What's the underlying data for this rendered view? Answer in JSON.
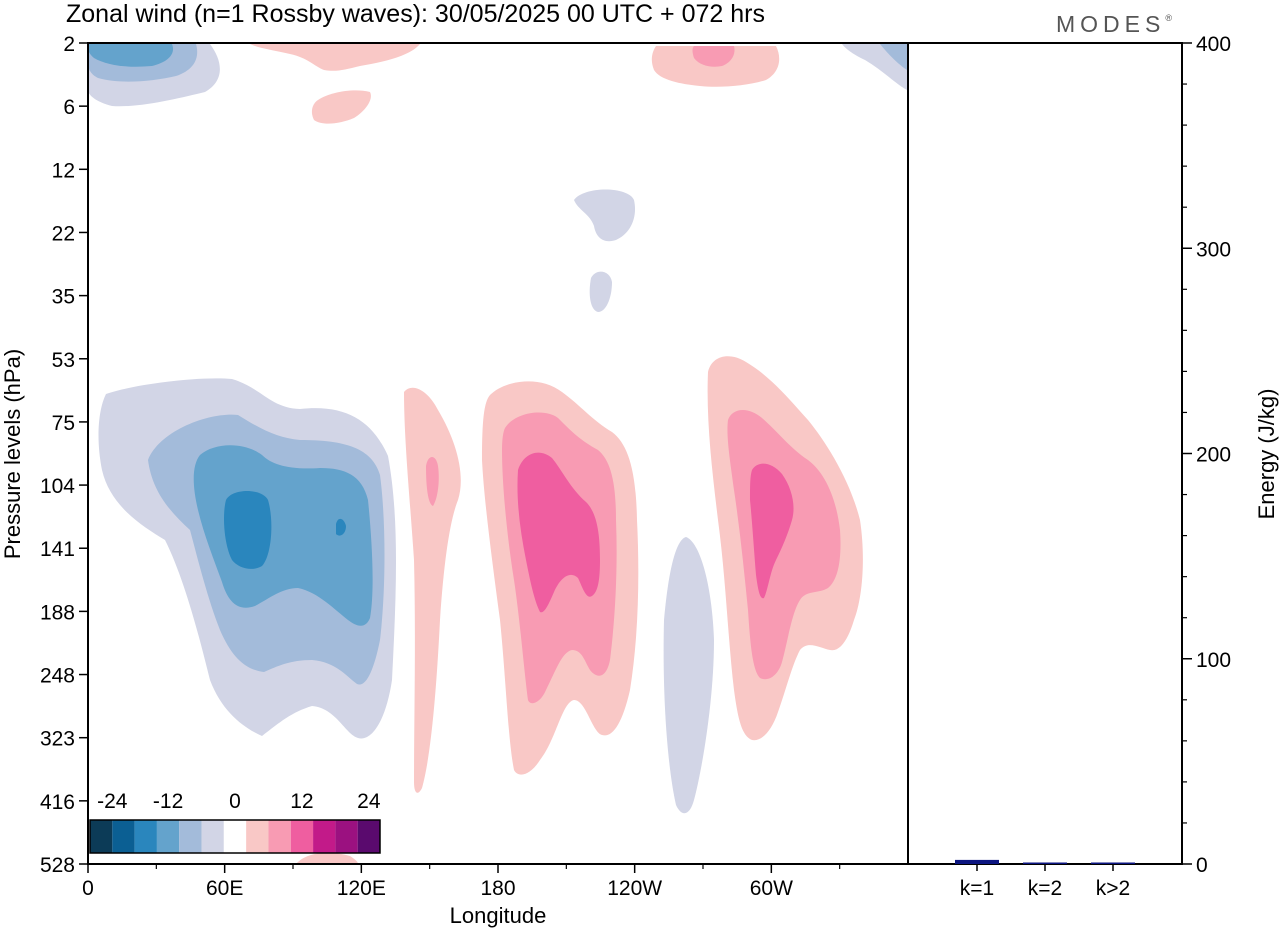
{
  "logo": {
    "text": "MODES",
    "mark": "®"
  },
  "chart_data": [
    {
      "type": "heatmap",
      "title": "Zonal wind (n=1 Rossby waves):  30/05/2025  00 UTC  + 072 hrs",
      "xlabel": "Longitude",
      "ylabel": "Pressure levels (hPa)",
      "x_ticks": [
        "0",
        "60E",
        "120E",
        "180",
        "120W",
        "60W"
      ],
      "x_tick_degrees": [
        0,
        60,
        120,
        180,
        240,
        300
      ],
      "x_range_degrees": [
        0,
        360
      ],
      "y_ticks": [
        "2",
        "6",
        "12",
        "22",
        "35",
        "53",
        "75",
        "104",
        "141",
        "188",
        "248",
        "323",
        "416",
        "528"
      ],
      "y_axis": "log-pressure, 2 hPa at top, 528 hPa at bottom",
      "contour_levels": [
        -24,
        -20,
        -16,
        -12,
        -8,
        -4,
        4,
        8,
        12,
        16,
        20,
        24
      ],
      "colorbar": {
        "labels": [
          "-24",
          "-12",
          "0",
          "12",
          "24"
        ],
        "colors": [
          "#0c3b57",
          "#0b5f93",
          "#2a86bd",
          "#64a3cc",
          "#a3bbda",
          "#d2d5e6",
          "#ffffff",
          "#f9c8c6",
          "#f89bb3",
          "#ef5ea0",
          "#c21a89",
          "#9b1180",
          "#5a0a6e"
        ]
      },
      "features": [
        {
          "sign": "negative",
          "lon_center": 45,
          "p_center": 125,
          "peak": -16,
          "p_range": [
            60,
            330
          ]
        },
        {
          "sign": "positive",
          "lon_center": 150,
          "p_center": 110,
          "peak": 8,
          "p_range": [
            60,
            430
          ]
        },
        {
          "sign": "positive",
          "lon_center": 198,
          "p_center": 120,
          "peak": 12,
          "p_range": [
            60,
            400
          ]
        },
        {
          "sign": "negative",
          "lon_center": 262,
          "p_center": 250,
          "peak": -4,
          "p_range": [
            140,
            420
          ]
        },
        {
          "sign": "positive",
          "lon_center": 300,
          "p_center": 120,
          "peak": 12,
          "p_range": [
            50,
            330
          ]
        },
        {
          "sign": "negative",
          "lon_center": 10,
          "p_center": 3,
          "peak": -12,
          "p_range": [
            2,
            6
          ]
        },
        {
          "sign": "positive",
          "lon_center": 272,
          "p_center": 3,
          "peak": 8,
          "p_range": [
            2,
            5
          ]
        },
        {
          "sign": "negative",
          "lon_center": 232,
          "p_center": 18,
          "peak": -4,
          "p_range": [
            15,
            23
          ]
        }
      ]
    },
    {
      "type": "bar",
      "ylabel": "Energy (J/kg)",
      "categories": [
        "k=1",
        "k=2",
        "k>2"
      ],
      "values": [
        2,
        0.5,
        0.3
      ],
      "ylim": [
        0,
        400
      ],
      "y_ticks": [
        "0",
        "100",
        "200",
        "300",
        "400"
      ],
      "bar_color": "#0c1580"
    }
  ]
}
